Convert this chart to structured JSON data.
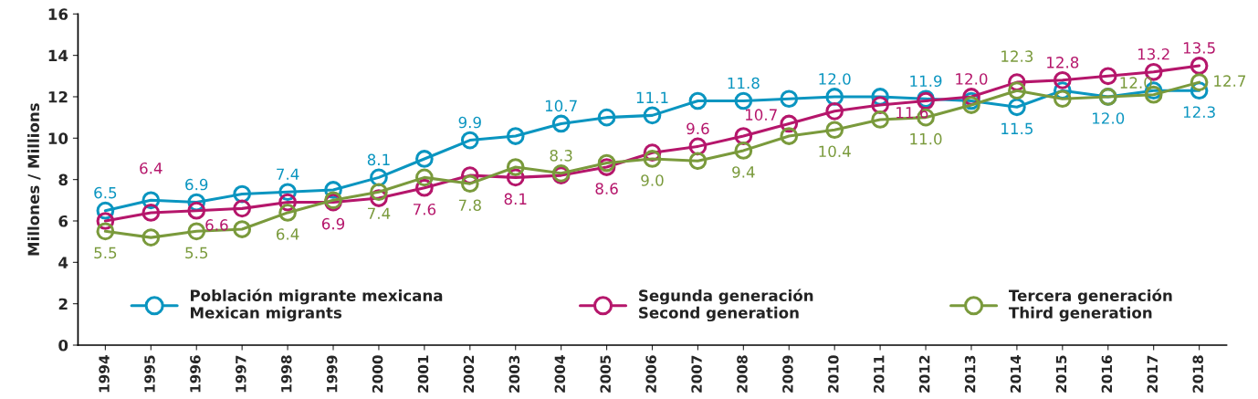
{
  "chart_data": {
    "type": "line",
    "ylabel": "Millones / Millions",
    "x": [
      1994,
      1995,
      1996,
      1997,
      1998,
      1999,
      2000,
      2001,
      2002,
      2003,
      2004,
      2005,
      2006,
      2007,
      2008,
      2009,
      2010,
      2011,
      2012,
      2013,
      2014,
      2015,
      2016,
      2017,
      2018
    ],
    "xlim": [
      1993.4,
      2018.6
    ],
    "xticks": [
      1994,
      1995,
      1996,
      1997,
      1998,
      1999,
      2000,
      2001,
      2002,
      2003,
      2004,
      2005,
      2006,
      2007,
      2008,
      2009,
      2010,
      2011,
      2012,
      2013,
      2014,
      2015,
      2016,
      2017,
      2018
    ],
    "ylim": [
      0,
      16
    ],
    "yticks": [
      0,
      2,
      4,
      6,
      8,
      10,
      12,
      14,
      16
    ],
    "grid": false,
    "legend": "bottom",
    "marker": "circle",
    "line_style": "solid",
    "series": [
      {
        "name": "Población migrante mexicana\nMexican migrants",
        "color": "#0a95c0",
        "values": [
          6.5,
          7.0,
          6.9,
          7.3,
          7.4,
          7.5,
          8.1,
          9.0,
          9.9,
          10.1,
          10.7,
          11.0,
          11.1,
          11.8,
          11.8,
          11.9,
          12.0,
          12.0,
          11.9,
          11.8,
          11.5,
          12.3,
          12.0,
          12.3,
          12.3
        ],
        "value_labels": [
          "6.5",
          null,
          "6.9",
          null,
          "7.4",
          null,
          "8.1",
          null,
          "9.9",
          null,
          "10.7",
          null,
          "11.1",
          null,
          "11.8",
          null,
          "12.0",
          null,
          "11.9",
          null,
          "11.5",
          null,
          "12.0",
          null,
          "12.3"
        ]
      },
      {
        "name": "Segunda generación\nSecond generation",
        "color": "#b5166b",
        "values": [
          6.0,
          6.4,
          6.5,
          6.6,
          6.9,
          6.9,
          7.1,
          7.6,
          8.2,
          8.1,
          8.2,
          8.6,
          9.3,
          9.6,
          10.1,
          10.7,
          11.3,
          11.6,
          11.8,
          12.0,
          12.7,
          12.8,
          13.0,
          13.2,
          13.5
        ],
        "value_labels": [
          null,
          "6.4",
          null,
          "6.6",
          null,
          "6.9",
          null,
          "7.6",
          null,
          "8.1",
          null,
          "8.6",
          null,
          "9.6",
          null,
          "10.7",
          null,
          "11.6",
          null,
          "12.0",
          null,
          "12.8",
          null,
          "13.2",
          "13.5"
        ]
      },
      {
        "name": "Tercera generación\nThird generation",
        "color": "#7a9a3c",
        "values": [
          5.5,
          5.2,
          5.5,
          5.6,
          6.4,
          7.0,
          7.4,
          8.1,
          7.8,
          8.6,
          8.3,
          8.8,
          9.0,
          8.9,
          9.4,
          10.1,
          10.4,
          10.9,
          11.0,
          11.6,
          12.3,
          11.9,
          12.0,
          12.1,
          12.7
        ],
        "value_labels": [
          "5.5",
          null,
          "5.5",
          null,
          "6.4",
          null,
          "7.4",
          null,
          "7.8",
          null,
          "8.3",
          null,
          "9.0",
          null,
          "9.4",
          null,
          "10.4",
          null,
          "11.0",
          null,
          "12.3",
          null,
          "12.0",
          null,
          "12.7"
        ]
      }
    ]
  }
}
